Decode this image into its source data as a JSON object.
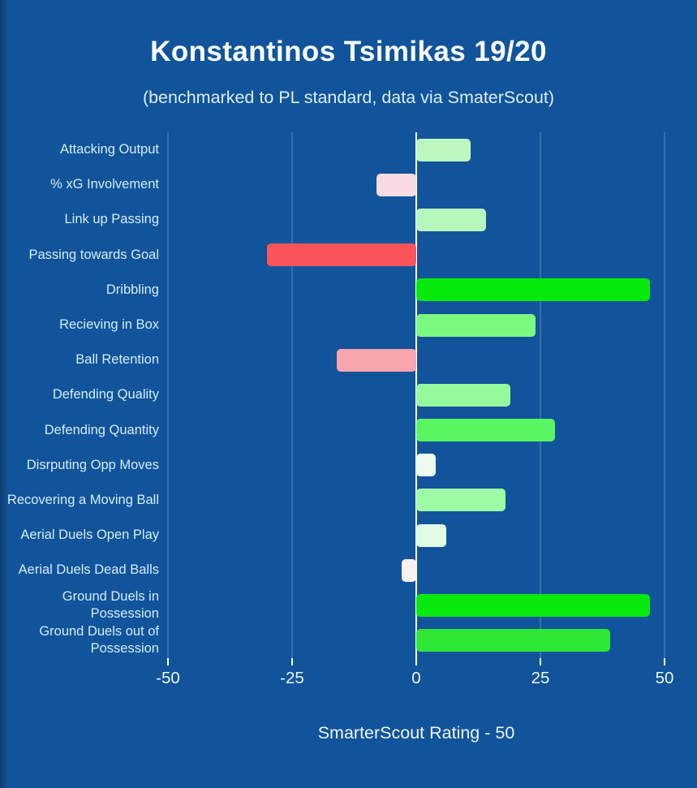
{
  "chart_data": {
    "type": "bar",
    "orientation": "horizontal",
    "title": "Konstantinos Tsimikas 19/20",
    "subtitle": "(benchmarked to PL standard, data via SmaterScout)",
    "xlabel": "SmarterScout Rating - 50",
    "xlim": [
      -50,
      50
    ],
    "xticks": [
      -50,
      -25,
      0,
      25,
      50
    ],
    "grid": true,
    "legend": false,
    "categories": [
      "Attacking Output",
      "% xG Involvement",
      "Link up Passing",
      "Passing towards Goal",
      "Dribbling",
      "Recieving in Box",
      "Ball Retention",
      "Defending Quality",
      "Defending Quantity",
      "Disrputing Opp Moves",
      "Recovering a Moving Ball",
      "Aerial Duels Open Play",
      "Aerial Duels Dead Balls",
      "Ground Duels in Possession",
      "Ground Duels out of Possession"
    ],
    "values": [
      11,
      -8,
      14,
      -30,
      47,
      24,
      -16,
      19,
      28,
      4,
      18,
      6,
      -3,
      47,
      39
    ],
    "bar_colors": [
      "#bdf7c0",
      "#f8dce3",
      "#b8f7bc",
      "#fa545b",
      "#07eb0c",
      "#7afa7f",
      "#f9a5ad",
      "#94fa9c",
      "#5af661",
      "#ebfdf0",
      "#9dfda5",
      "#e1fce5",
      "#fdeff4",
      "#08e90e",
      "#2ee835"
    ]
  },
  "colors": {
    "background": "#11549b",
    "gridline": "#9fc4de",
    "zero_line": "#ffffff",
    "title_text": "#fafdff",
    "label_text": "#d6ecf6",
    "tick_text": "#ecf5fb"
  }
}
